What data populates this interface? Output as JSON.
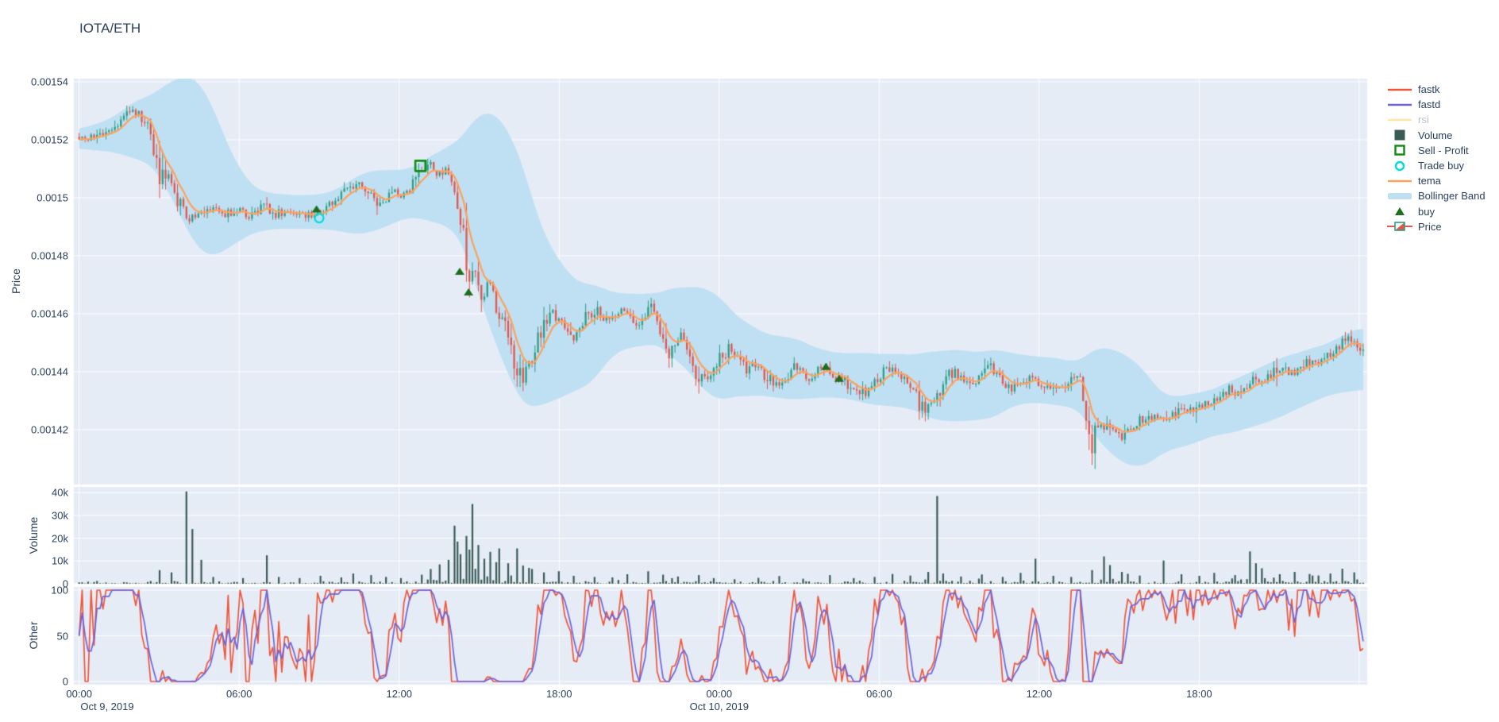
{
  "title": "IOTA/ETH",
  "colors": {
    "text": "#2a3f5f",
    "muted_text": "#b9bfca",
    "panel_bg": "#E5ECF6",
    "grid": "#ffffff",
    "candle_up": "#2f9e85",
    "candle_down": "#e4564c",
    "tema": "#FFA15A",
    "bollinger": "#bfe0f3",
    "volume_bar": "#3a5a55",
    "fastk": "#EF553B",
    "fastd": "#6d64db",
    "rsi": "#FECB52",
    "sell_profit": "#0f8c0f",
    "trade_buy": "#00dbe0",
    "buy": "#1e6e1e"
  },
  "legend": {
    "items": [
      {
        "label": "fastk",
        "swatch": "line",
        "color": "#EF553B",
        "muted": false
      },
      {
        "label": "fastd",
        "swatch": "line",
        "color": "#6d64db",
        "muted": false
      },
      {
        "label": "rsi",
        "swatch": "line",
        "color": "#FECB52",
        "muted": true
      },
      {
        "label": "Volume",
        "swatch": "square",
        "color": "#3a5a55",
        "muted": false
      },
      {
        "label": "Sell - Profit",
        "swatch": "open-square",
        "color": "#0f8c0f",
        "muted": false
      },
      {
        "label": "Trade buy",
        "swatch": "open-circle",
        "color": "#00dbe0",
        "muted": false
      },
      {
        "label": "tema",
        "swatch": "line",
        "color": "#FFA15A",
        "muted": false
      },
      {
        "label": "Bollinger Band",
        "swatch": "band",
        "color": "#bfe0f3",
        "muted": false
      },
      {
        "label": "buy",
        "swatch": "triangle",
        "color": "#1e6e1e",
        "muted": false
      },
      {
        "label": "Price",
        "swatch": "candle",
        "color": "#2f9e85",
        "muted": false
      }
    ]
  },
  "axes": {
    "price": {
      "title": "Price",
      "ticks": [
        {
          "label": "0.00154",
          "v": 0.00154
        },
        {
          "label": "0.00152",
          "v": 0.00152
        },
        {
          "label": "0.0015",
          "v": 0.0015
        },
        {
          "label": "0.00148",
          "v": 0.00148
        },
        {
          "label": "0.00146",
          "v": 0.00146
        },
        {
          "label": "0.00144",
          "v": 0.00144
        },
        {
          "label": "0.00142",
          "v": 0.00142
        }
      ]
    },
    "volume": {
      "title": "Volume",
      "ticks": [
        {
          "label": "0",
          "v": 0
        },
        {
          "label": "10k",
          "v": 10000
        },
        {
          "label": "20k",
          "v": 20000
        },
        {
          "label": "30k",
          "v": 30000
        },
        {
          "label": "40k",
          "v": 40000
        }
      ]
    },
    "other": {
      "title": "Other",
      "ticks": [
        {
          "label": "0",
          "v": 0
        },
        {
          "label": "50",
          "v": 50
        },
        {
          "label": "100",
          "v": 100
        }
      ]
    },
    "x": {
      "ticks": [
        {
          "label": "00:00",
          "t": 0,
          "date": "Oct 9, 2019"
        },
        {
          "label": "06:00",
          "t": 6
        },
        {
          "label": "12:00",
          "t": 12
        },
        {
          "label": "18:00",
          "t": 18
        },
        {
          "label": "00:00",
          "t": 24,
          "date": "Oct 10, 2019"
        },
        {
          "label": "06:00",
          "t": 30
        },
        {
          "label": "12:00",
          "t": 36
        },
        {
          "label": "18:00",
          "t": 42
        }
      ]
    }
  },
  "chart_data": {
    "type": "candlestick",
    "pair": "IOTA/ETH",
    "x_start": "Oct 9, 2019 00:00",
    "x_end": "Oct 11, 2019 00:00",
    "ylim_price": [
      0.0014011,
      0.0015411
    ],
    "ylim_volume": [
      0,
      42500
    ],
    "ylim_other": [
      0,
      100
    ],
    "hidden_series": [
      "rsi"
    ],
    "price_keyframes": [
      [
        0,
        0.001521
      ],
      [
        0.5,
        0.001521
      ],
      [
        0.9,
        0.001523
      ],
      [
        1.3,
        0.001525
      ],
      [
        1.7,
        0.001529
      ],
      [
        2.0,
        0.001531
      ],
      [
        2.2,
        0.001529
      ],
      [
        2.5,
        0.001526
      ],
      [
        2.7,
        0.001522
      ],
      [
        2.9,
        0.001512
      ],
      [
        3.1,
        0.001507
      ],
      [
        3.3,
        0.001506
      ],
      [
        3.5,
        0.001502
      ],
      [
        3.7,
        0.001497
      ],
      [
        4.0,
        0.001495
      ],
      [
        4.2,
        0.001493
      ],
      [
        4.5,
        0.001496
      ],
      [
        4.8,
        0.001495
      ],
      [
        5.1,
        0.001496
      ],
      [
        5.4,
        0.001494
      ],
      [
        5.7,
        0.001495
      ],
      [
        6.0,
        0.001496
      ],
      [
        6.3,
        0.001494
      ],
      [
        6.6,
        0.001495
      ],
      [
        7.0,
        0.001497
      ],
      [
        7.3,
        0.001494
      ],
      [
        7.6,
        0.001495
      ],
      [
        8.0,
        0.001496
      ],
      [
        8.4,
        0.001494
      ],
      [
        8.8,
        0.001494
      ],
      [
        9.0,
        0.001495
      ],
      [
        9.3,
        0.001497
      ],
      [
        9.6,
        0.001499
      ],
      [
        10.0,
        0.001502
      ],
      [
        10.3,
        0.001504
      ],
      [
        10.6,
        0.001505
      ],
      [
        10.9,
        0.0015
      ],
      [
        11.2,
        0.001497
      ],
      [
        11.5,
        0.001499
      ],
      [
        11.8,
        0.001502
      ],
      [
        12.1,
        0.0015
      ],
      [
        12.4,
        0.001503
      ],
      [
        12.7,
        0.001507
      ],
      [
        12.9,
        0.00151
      ],
      [
        13.1,
        0.001512
      ],
      [
        13.3,
        0.001509
      ],
      [
        13.5,
        0.001508
      ],
      [
        13.7,
        0.00151
      ],
      [
        13.9,
        0.001508
      ],
      [
        14.1,
        0.001502
      ],
      [
        14.3,
        0.00149
      ],
      [
        14.5,
        0.00148
      ],
      [
        14.7,
        0.001475
      ],
      [
        14.9,
        0.00147
      ],
      [
        15.1,
        0.001466
      ],
      [
        15.35,
        0.001471
      ],
      [
        15.5,
        0.001468
      ],
      [
        15.7,
        0.00146
      ],
      [
        15.9,
        0.001456
      ],
      [
        16.1,
        0.001452
      ],
      [
        16.3,
        0.001445
      ],
      [
        16.5,
        0.001441
      ],
      [
        16.7,
        0.001438
      ],
      [
        17.0,
        0.001445
      ],
      [
        17.3,
        0.001453
      ],
      [
        17.6,
        0.001458
      ],
      [
        17.9,
        0.00146
      ],
      [
        18.2,
        0.001455
      ],
      [
        18.5,
        0.001451
      ],
      [
        18.8,
        0.001456
      ],
      [
        19.1,
        0.001461
      ],
      [
        19.4,
        0.001462
      ],
      [
        19.7,
        0.001457
      ],
      [
        20.0,
        0.001459
      ],
      [
        20.3,
        0.001462
      ],
      [
        20.6,
        0.001459
      ],
      [
        20.9,
        0.001455
      ],
      [
        21.2,
        0.001459
      ],
      [
        21.5,
        0.001462
      ],
      [
        21.8,
        0.001454
      ],
      [
        22.0,
        0.001446
      ],
      [
        22.3,
        0.001448
      ],
      [
        22.6,
        0.001452
      ],
      [
        22.9,
        0.001444
      ],
      [
        23.2,
        0.001438
      ],
      [
        23.5,
        0.001437
      ],
      [
        23.8,
        0.001441
      ],
      [
        24.1,
        0.001446
      ],
      [
        24.4,
        0.001448
      ],
      [
        24.7,
        0.001444
      ],
      [
        25.0,
        0.001441
      ],
      [
        25.3,
        0.001443
      ],
      [
        25.6,
        0.00144
      ],
      [
        25.9,
        0.001437
      ],
      [
        26.2,
        0.001436
      ],
      [
        26.5,
        0.001438
      ],
      [
        26.8,
        0.001441
      ],
      [
        27.1,
        0.00144
      ],
      [
        27.4,
        0.001438
      ],
      [
        27.7,
        0.001441
      ],
      [
        28.0,
        0.001441
      ],
      [
        28.3,
        0.001439
      ],
      [
        28.6,
        0.001437
      ],
      [
        28.9,
        0.001435
      ],
      [
        29.2,
        0.001434
      ],
      [
        29.5,
        0.001433
      ],
      [
        29.8,
        0.001436
      ],
      [
        30.1,
        0.00144
      ],
      [
        30.4,
        0.001441
      ],
      [
        30.7,
        0.001438
      ],
      [
        31.0,
        0.001436
      ],
      [
        31.3,
        0.001434
      ],
      [
        31.5,
        0.001429
      ],
      [
        31.7,
        0.001425
      ],
      [
        31.9,
        0.001428
      ],
      [
        32.1,
        0.001432
      ],
      [
        32.4,
        0.001436
      ],
      [
        32.7,
        0.00144
      ],
      [
        33.0,
        0.001438
      ],
      [
        33.3,
        0.001435
      ],
      [
        33.6,
        0.001436
      ],
      [
        33.9,
        0.001439
      ],
      [
        34.2,
        0.001441
      ],
      [
        34.5,
        0.001438
      ],
      [
        34.8,
        0.001436
      ],
      [
        35.1,
        0.001434
      ],
      [
        35.4,
        0.001436
      ],
      [
        35.7,
        0.001439
      ],
      [
        36.0,
        0.001436
      ],
      [
        36.3,
        0.001434
      ],
      [
        36.6,
        0.001433
      ],
      [
        36.9,
        0.001435
      ],
      [
        37.2,
        0.001438
      ],
      [
        37.5,
        0.00144
      ],
      [
        37.65,
        0.001431
      ],
      [
        37.8,
        0.001419
      ],
      [
        38.0,
        0.001415
      ],
      [
        38.2,
        0.001419
      ],
      [
        38.5,
        0.001423
      ],
      [
        38.8,
        0.00142
      ],
      [
        39.1,
        0.001418
      ],
      [
        39.4,
        0.001421
      ],
      [
        39.7,
        0.001423
      ],
      [
        40.0,
        0.001424
      ],
      [
        40.4,
        0.001425
      ],
      [
        40.8,
        0.001424
      ],
      [
        41.2,
        0.001426
      ],
      [
        41.6,
        0.001427
      ],
      [
        42.0,
        0.001428
      ],
      [
        42.4,
        0.00143
      ],
      [
        42.8,
        0.001431
      ],
      [
        43.1,
        0.001434
      ],
      [
        43.4,
        0.001432
      ],
      [
        43.7,
        0.001435
      ],
      [
        44.0,
        0.001437
      ],
      [
        44.3,
        0.001435
      ],
      [
        44.6,
        0.001438
      ],
      [
        44.9,
        0.00144
      ],
      [
        45.2,
        0.001441
      ],
      [
        45.5,
        0.001439
      ],
      [
        45.8,
        0.001442
      ],
      [
        46.1,
        0.001444
      ],
      [
        46.4,
        0.001443
      ],
      [
        46.7,
        0.001445
      ],
      [
        47.0,
        0.001447
      ],
      [
        47.3,
        0.00145
      ],
      [
        47.6,
        0.001452
      ],
      [
        47.9,
        0.001449
      ],
      [
        48.15,
        0.001446
      ]
    ],
    "volume_spikes": [
      [
        3.0,
        6000
      ],
      [
        3.5,
        5000
      ],
      [
        3.97,
        40500
      ],
      [
        4.3,
        24000
      ],
      [
        4.6,
        10500
      ],
      [
        5.0,
        3000
      ],
      [
        6.2,
        2500
      ],
      [
        7.05,
        12500
      ],
      [
        7.5,
        3000
      ],
      [
        8.3,
        2500
      ],
      [
        9.0,
        3500
      ],
      [
        9.8,
        2800
      ],
      [
        10.3,
        4500
      ],
      [
        10.9,
        3800
      ],
      [
        11.5,
        3000
      ],
      [
        12.1,
        2500
      ],
      [
        12.8,
        4000
      ],
      [
        13.2,
        6500
      ],
      [
        13.5,
        8500
      ],
      [
        13.8,
        10500
      ],
      [
        14.05,
        25500
      ],
      [
        14.2,
        18500
      ],
      [
        14.35,
        13000
      ],
      [
        14.5,
        21000
      ],
      [
        14.65,
        15000
      ],
      [
        14.8,
        35000
      ],
      [
        15.0,
        17000
      ],
      [
        15.2,
        11000
      ],
      [
        15.4,
        14000
      ],
      [
        15.6,
        9500
      ],
      [
        15.8,
        15500
      ],
      [
        16.1,
        9000
      ],
      [
        16.4,
        15500
      ],
      [
        16.7,
        8000
      ],
      [
        17.0,
        6500
      ],
      [
        17.4,
        5000
      ],
      [
        18.0,
        5500
      ],
      [
        18.6,
        3500
      ],
      [
        19.3,
        3000
      ],
      [
        20.0,
        2800
      ],
      [
        20.6,
        4200
      ],
      [
        21.3,
        5500
      ],
      [
        21.9,
        4000
      ],
      [
        22.5,
        3200
      ],
      [
        23.2,
        3800
      ],
      [
        23.8,
        2500
      ],
      [
        24.6,
        2000
      ],
      [
        25.5,
        2600
      ],
      [
        26.3,
        3400
      ],
      [
        27.2,
        2200
      ],
      [
        28.2,
        3800
      ],
      [
        29.0,
        2500
      ],
      [
        29.8,
        3000
      ],
      [
        30.5,
        4300
      ],
      [
        31.2,
        3600
      ],
      [
        31.8,
        5200
      ],
      [
        32.12,
        38500
      ],
      [
        32.4,
        4500
      ],
      [
        33.1,
        3200
      ],
      [
        33.8,
        4100
      ],
      [
        34.6,
        3000
      ],
      [
        35.3,
        4800
      ],
      [
        35.9,
        11000
      ],
      [
        36.5,
        3500
      ],
      [
        37.2,
        3000
      ],
      [
        38.0,
        6000
      ],
      [
        38.45,
        12000
      ],
      [
        38.7,
        8200
      ],
      [
        39.1,
        5200
      ],
      [
        39.8,
        3600
      ],
      [
        40.7,
        10200
      ],
      [
        41.3,
        4200
      ],
      [
        42.0,
        3500
      ],
      [
        42.6,
        4800
      ],
      [
        43.3,
        3800
      ],
      [
        43.9,
        14200
      ],
      [
        44.15,
        9000
      ],
      [
        44.4,
        6800
      ],
      [
        45.0,
        4200
      ],
      [
        45.6,
        5200
      ],
      [
        46.2,
        3600
      ],
      [
        46.9,
        4500
      ],
      [
        47.4,
        6600
      ],
      [
        47.8,
        5000
      ]
    ],
    "markers": {
      "sell_profit": [
        {
          "t": 12.8,
          "price": 0.001511
        }
      ],
      "trade_buy": [
        {
          "t": 9.0,
          "price": 0.001493
        }
      ],
      "buy": [
        {
          "t": 8.9,
          "price": 0.001496
        },
        {
          "t": 14.27,
          "price": 0.0014745
        },
        {
          "t": 14.6,
          "price": 0.0014674
        },
        {
          "t": 28.0,
          "price": 0.0014417
        },
        {
          "t": 28.5,
          "price": 0.0014376
        }
      ]
    }
  }
}
